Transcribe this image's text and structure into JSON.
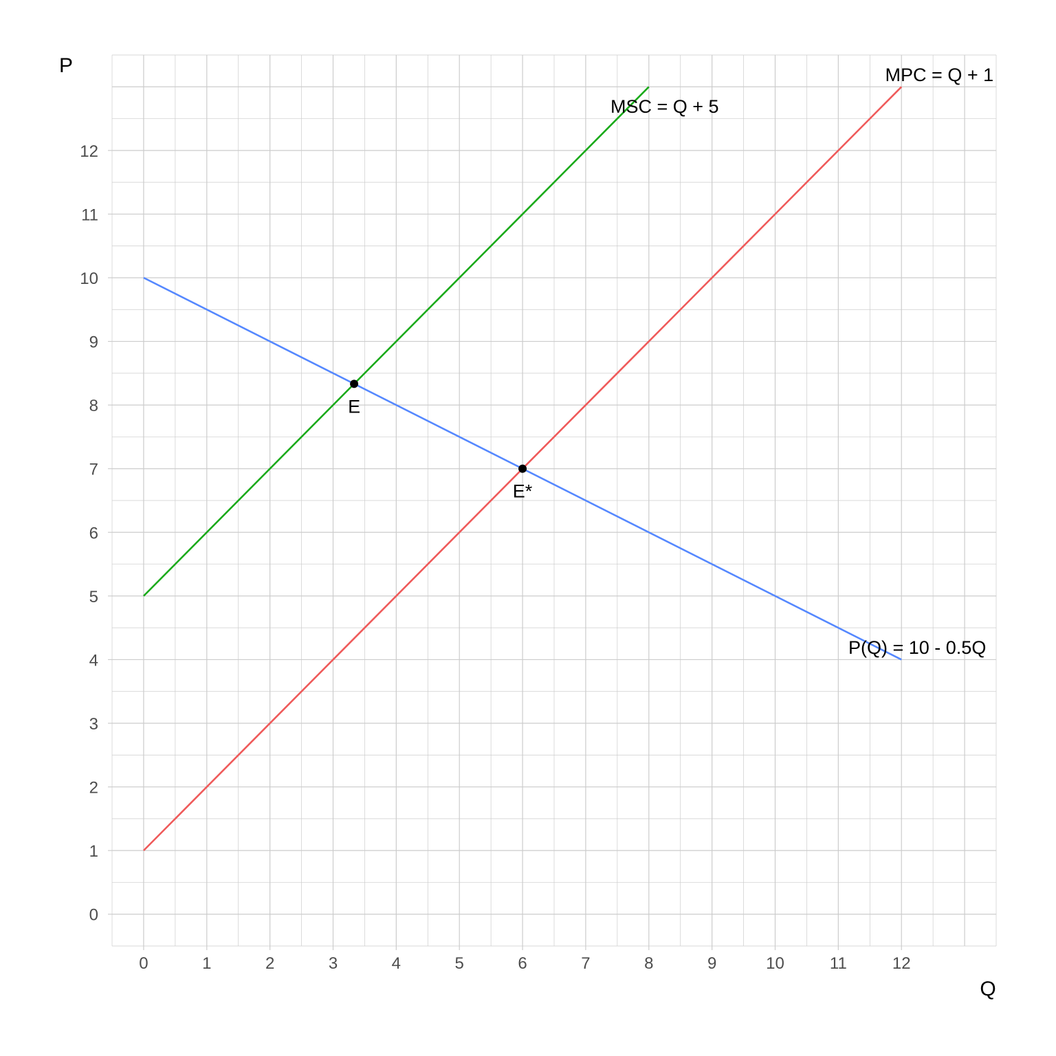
{
  "chart_data": {
    "type": "line",
    "xlabel": "Q",
    "ylabel": "P",
    "xlim": [
      -0.5,
      13.5
    ],
    "ylim": [
      -0.5,
      13.5
    ],
    "x_ticks": [
      0,
      1,
      2,
      3,
      4,
      5,
      6,
      7,
      8,
      9,
      10,
      11,
      12
    ],
    "y_ticks": [
      0,
      1,
      2,
      3,
      4,
      5,
      6,
      7,
      8,
      9,
      10,
      11,
      12
    ],
    "grid": true,
    "grid_minor_step": 0.5,
    "colors": {
      "grid": "#cccccc",
      "tick_text": "#4d4d4d",
      "point": "#000000"
    },
    "series": [
      {
        "name": "MPC = Q + 1",
        "color": "#ef5a5a",
        "points": [
          [
            0,
            1
          ],
          [
            12,
            13
          ]
        ],
        "label_at": [
          12.6,
          13.2
        ]
      },
      {
        "name": "MSC = Q + 5",
        "color": "#1aaa1a",
        "points": [
          [
            0,
            5
          ],
          [
            8,
            13
          ]
        ],
        "label_at": [
          8.25,
          12.7
        ]
      },
      {
        "name": "P(Q) = 10 - 0.5Q",
        "color": "#5588ff",
        "points": [
          [
            0,
            10
          ],
          [
            12,
            4
          ]
        ],
        "label_at": [
          12.25,
          4.2
        ]
      }
    ],
    "points": [
      {
        "label": "E",
        "x": 3.333,
        "y": 8.333
      },
      {
        "label": "E*",
        "x": 6,
        "y": 7
      }
    ]
  }
}
